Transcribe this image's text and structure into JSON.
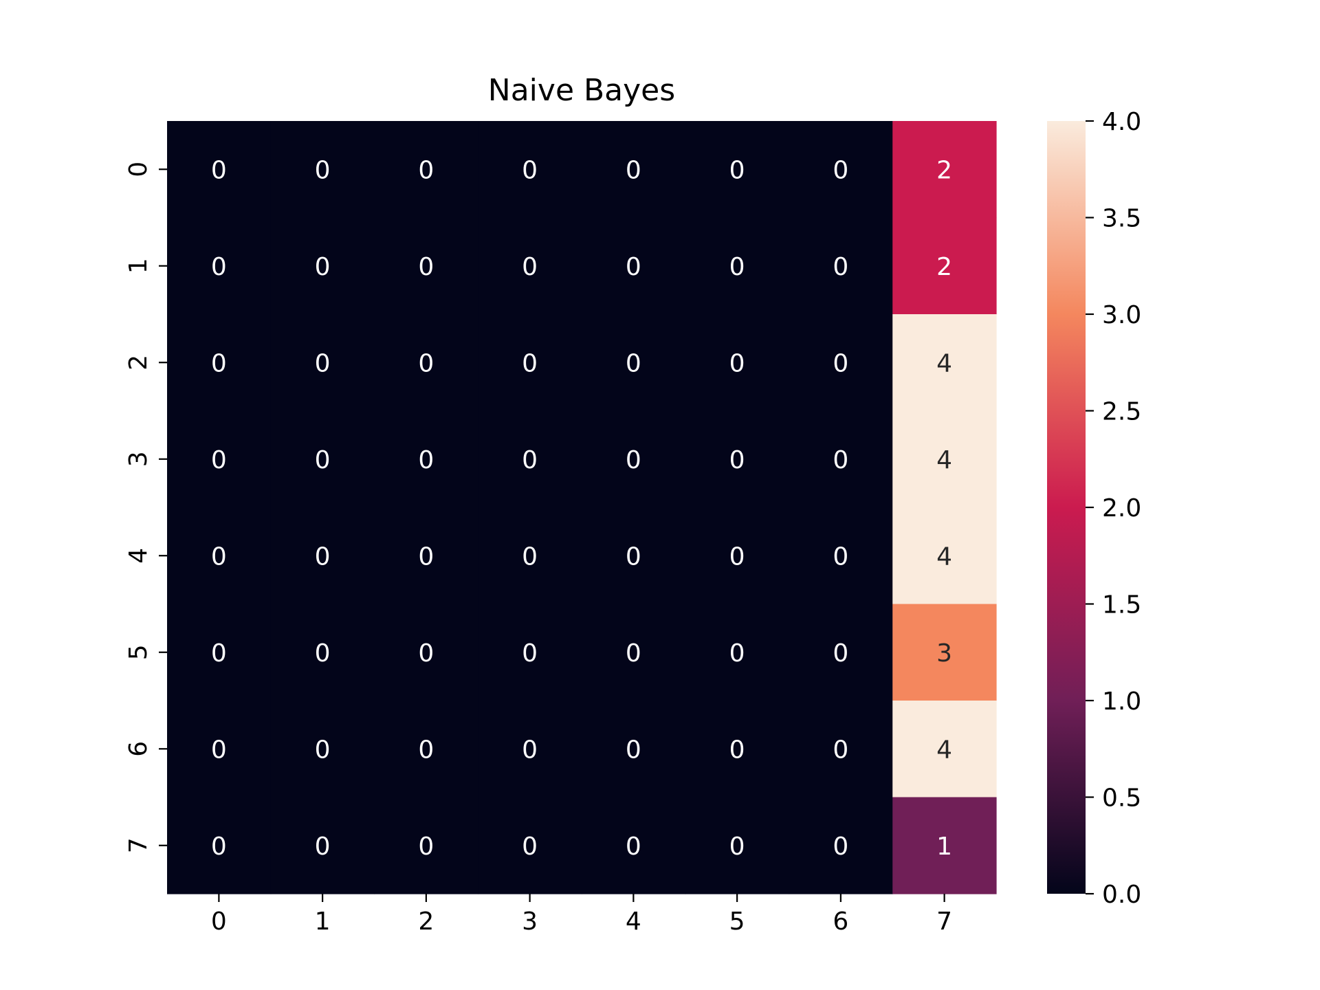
{
  "chart_data": {
    "type": "heatmap",
    "title": "Naive Bayes",
    "x_tick_labels": [
      "0",
      "1",
      "2",
      "3",
      "4",
      "5",
      "6",
      "7"
    ],
    "y_tick_labels": [
      "0",
      "1",
      "2",
      "3",
      "4",
      "5",
      "6",
      "7"
    ],
    "values": [
      [
        0,
        0,
        0,
        0,
        0,
        0,
        0,
        2
      ],
      [
        0,
        0,
        0,
        0,
        0,
        0,
        0,
        2
      ],
      [
        0,
        0,
        0,
        0,
        0,
        0,
        0,
        4
      ],
      [
        0,
        0,
        0,
        0,
        0,
        0,
        0,
        4
      ],
      [
        0,
        0,
        0,
        0,
        0,
        0,
        0,
        4
      ],
      [
        0,
        0,
        0,
        0,
        0,
        0,
        0,
        3
      ],
      [
        0,
        0,
        0,
        0,
        0,
        0,
        0,
        4
      ],
      [
        0,
        0,
        0,
        0,
        0,
        0,
        0,
        1
      ]
    ],
    "annotated": true,
    "colorbar": {
      "range": [
        0.0,
        4.0
      ],
      "tick_labels": [
        "0.0",
        "0.5",
        "1.0",
        "1.5",
        "2.0",
        "2.5",
        "3.0",
        "3.5",
        "4.0"
      ],
      "colormap": "rocket",
      "color_stops": [
        "#03051a",
        "#701f57",
        "#cb1b4f",
        "#f4875e",
        "#faebdd"
      ]
    },
    "grid": false
  }
}
